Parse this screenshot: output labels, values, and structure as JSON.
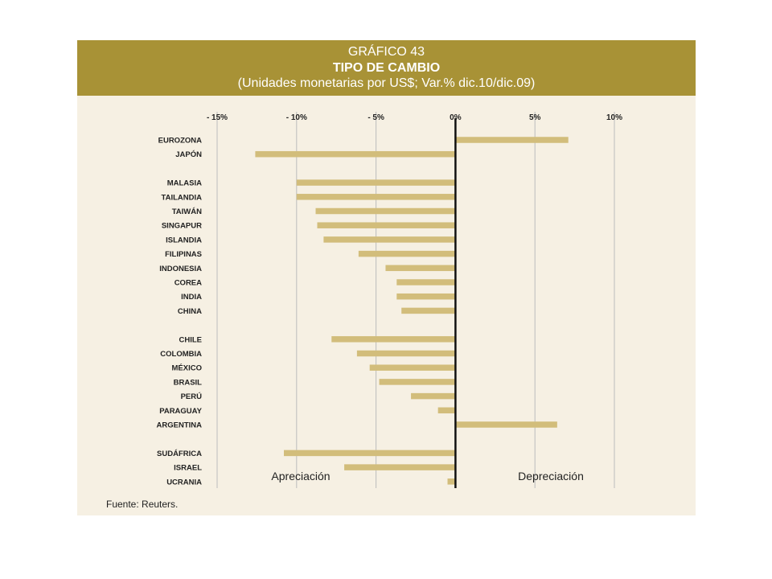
{
  "header": {
    "line1": "GRÁFICO 43",
    "line2": "TIPO DE CAMBIO",
    "line3": "(Unidades monetarias por US$; Var.% dic.10/dic.09)"
  },
  "source": "Fuente: Reuters.",
  "colors": {
    "header_bg": "#a89236",
    "panel_bg": "#f6f0e3",
    "bar": "#d2bd7b",
    "zero_line": "#111111",
    "grid": "#bcbcbc"
  },
  "chart_data": {
    "type": "bar",
    "orientation": "horizontal",
    "title": "TIPO DE CAMBIO",
    "subtitle": "(Unidades monetarias por US$; Var.% dic.10/dic.09)",
    "xlim": [
      -15,
      10
    ],
    "xticks": [
      -15,
      -10,
      -5,
      0,
      5,
      10
    ],
    "xtick_labels": [
      "- 15%",
      "- 10%",
      "- 5%",
      "0%",
      "5%",
      "10%"
    ],
    "grid": true,
    "axis_position": "top",
    "annotations": {
      "left": "Apreciación",
      "right": "Depreciación"
    },
    "groups": [
      {
        "categories": [
          "EUROZONA",
          "JAPÓN"
        ],
        "values": [
          7.1,
          -12.6
        ]
      },
      {
        "categories": [
          "MALASIA",
          "TAILANDIA",
          "TAIWÁN",
          "SINGAPUR",
          "ISLANDIA",
          "FILIPINAS",
          "INDONESIA",
          "COREA",
          "INDIA",
          "CHINA"
        ],
        "values": [
          -10.0,
          -10.0,
          -8.8,
          -8.7,
          -8.3,
          -6.1,
          -4.4,
          -3.7,
          -3.7,
          -3.4
        ]
      },
      {
        "categories": [
          "CHILE",
          "COLOMBIA",
          "MÉXICO",
          "BRASIL",
          "PERÚ",
          "PARAGUAY",
          "ARGENTINA"
        ],
        "values": [
          -7.8,
          -6.2,
          -5.4,
          -4.8,
          -2.8,
          -1.1,
          6.4
        ]
      },
      {
        "categories": [
          "SUDÁFRICA",
          "ISRAEL",
          "UCRANIA"
        ],
        "values": [
          -10.8,
          -7.0,
          -0.5
        ]
      }
    ]
  }
}
